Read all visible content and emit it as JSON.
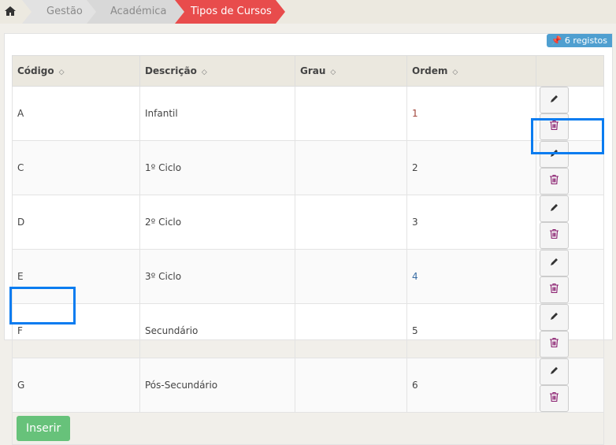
{
  "breadcrumb": {
    "items": [
      "Gestão",
      "Académica",
      "Tipos de Cursos"
    ],
    "active_color": "#e84c4c"
  },
  "badge": {
    "label": "6 registos",
    "icon": "pin-icon"
  },
  "table": {
    "headers": [
      "Código",
      "Descrição",
      "Grau",
      "Ordem"
    ],
    "rows": [
      {
        "codigo": "A",
        "descricao": "Infantil",
        "grau": "",
        "ordem": "1"
      },
      {
        "codigo": "C",
        "descricao": "1º Ciclo",
        "grau": "",
        "ordem": "2"
      },
      {
        "codigo": "D",
        "descricao": "2º Ciclo",
        "grau": "",
        "ordem": "3"
      },
      {
        "codigo": "E",
        "descricao": "3º Ciclo",
        "grau": "",
        "ordem": "4"
      },
      {
        "codigo": "F",
        "descricao": "Secundário",
        "grau": "",
        "ordem": "5"
      },
      {
        "codigo": "G",
        "descricao": "Pós-Secundário",
        "grau": "",
        "ordem": "6"
      }
    ]
  },
  "insert_label": "Inserir"
}
